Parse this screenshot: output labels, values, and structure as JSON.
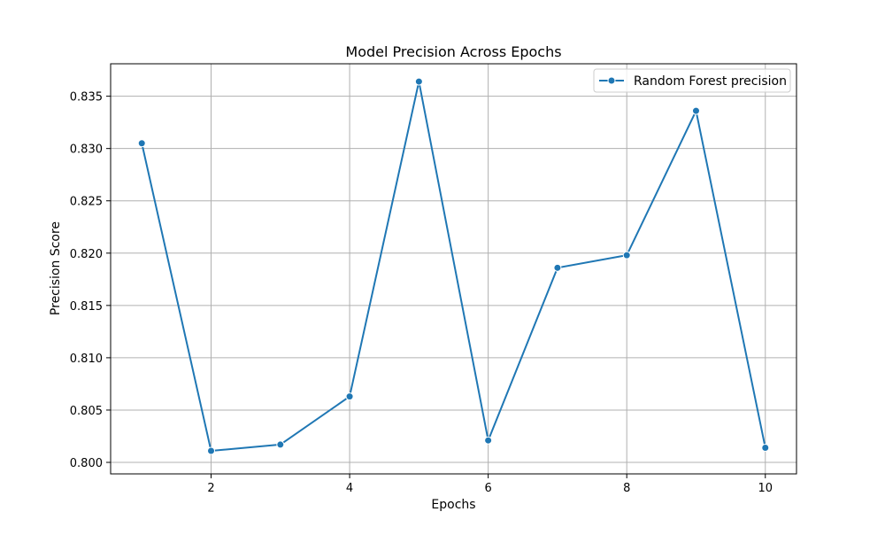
{
  "chart_data": {
    "type": "line",
    "title": "Model Precision Across Epochs",
    "xlabel": "Epochs",
    "ylabel": "Precision Score",
    "xlim": [
      0.55,
      10.45
    ],
    "ylim": [
      0.7989,
      0.8381
    ],
    "x_ticks": [
      2,
      4,
      6,
      8,
      10
    ],
    "y_ticks": [
      0.8,
      0.805,
      0.81,
      0.815,
      0.82,
      0.825,
      0.83,
      0.835
    ],
    "x_tick_labels": [
      "2",
      "4",
      "6",
      "8",
      "10"
    ],
    "y_tick_labels": [
      "0.800",
      "0.805",
      "0.810",
      "0.815",
      "0.820",
      "0.825",
      "0.830",
      "0.835"
    ],
    "grid": true,
    "legend_position": "top-right",
    "x": [
      1,
      2,
      3,
      4,
      5,
      6,
      7,
      8,
      9,
      10
    ],
    "series": [
      {
        "name": "Random Forest precision",
        "color": "#1f77b4",
        "marker": "circle",
        "values": [
          0.8305,
          0.8011,
          0.8017,
          0.8063,
          0.8364,
          0.8021,
          0.8186,
          0.8198,
          0.8336,
          0.8014
        ]
      }
    ]
  }
}
